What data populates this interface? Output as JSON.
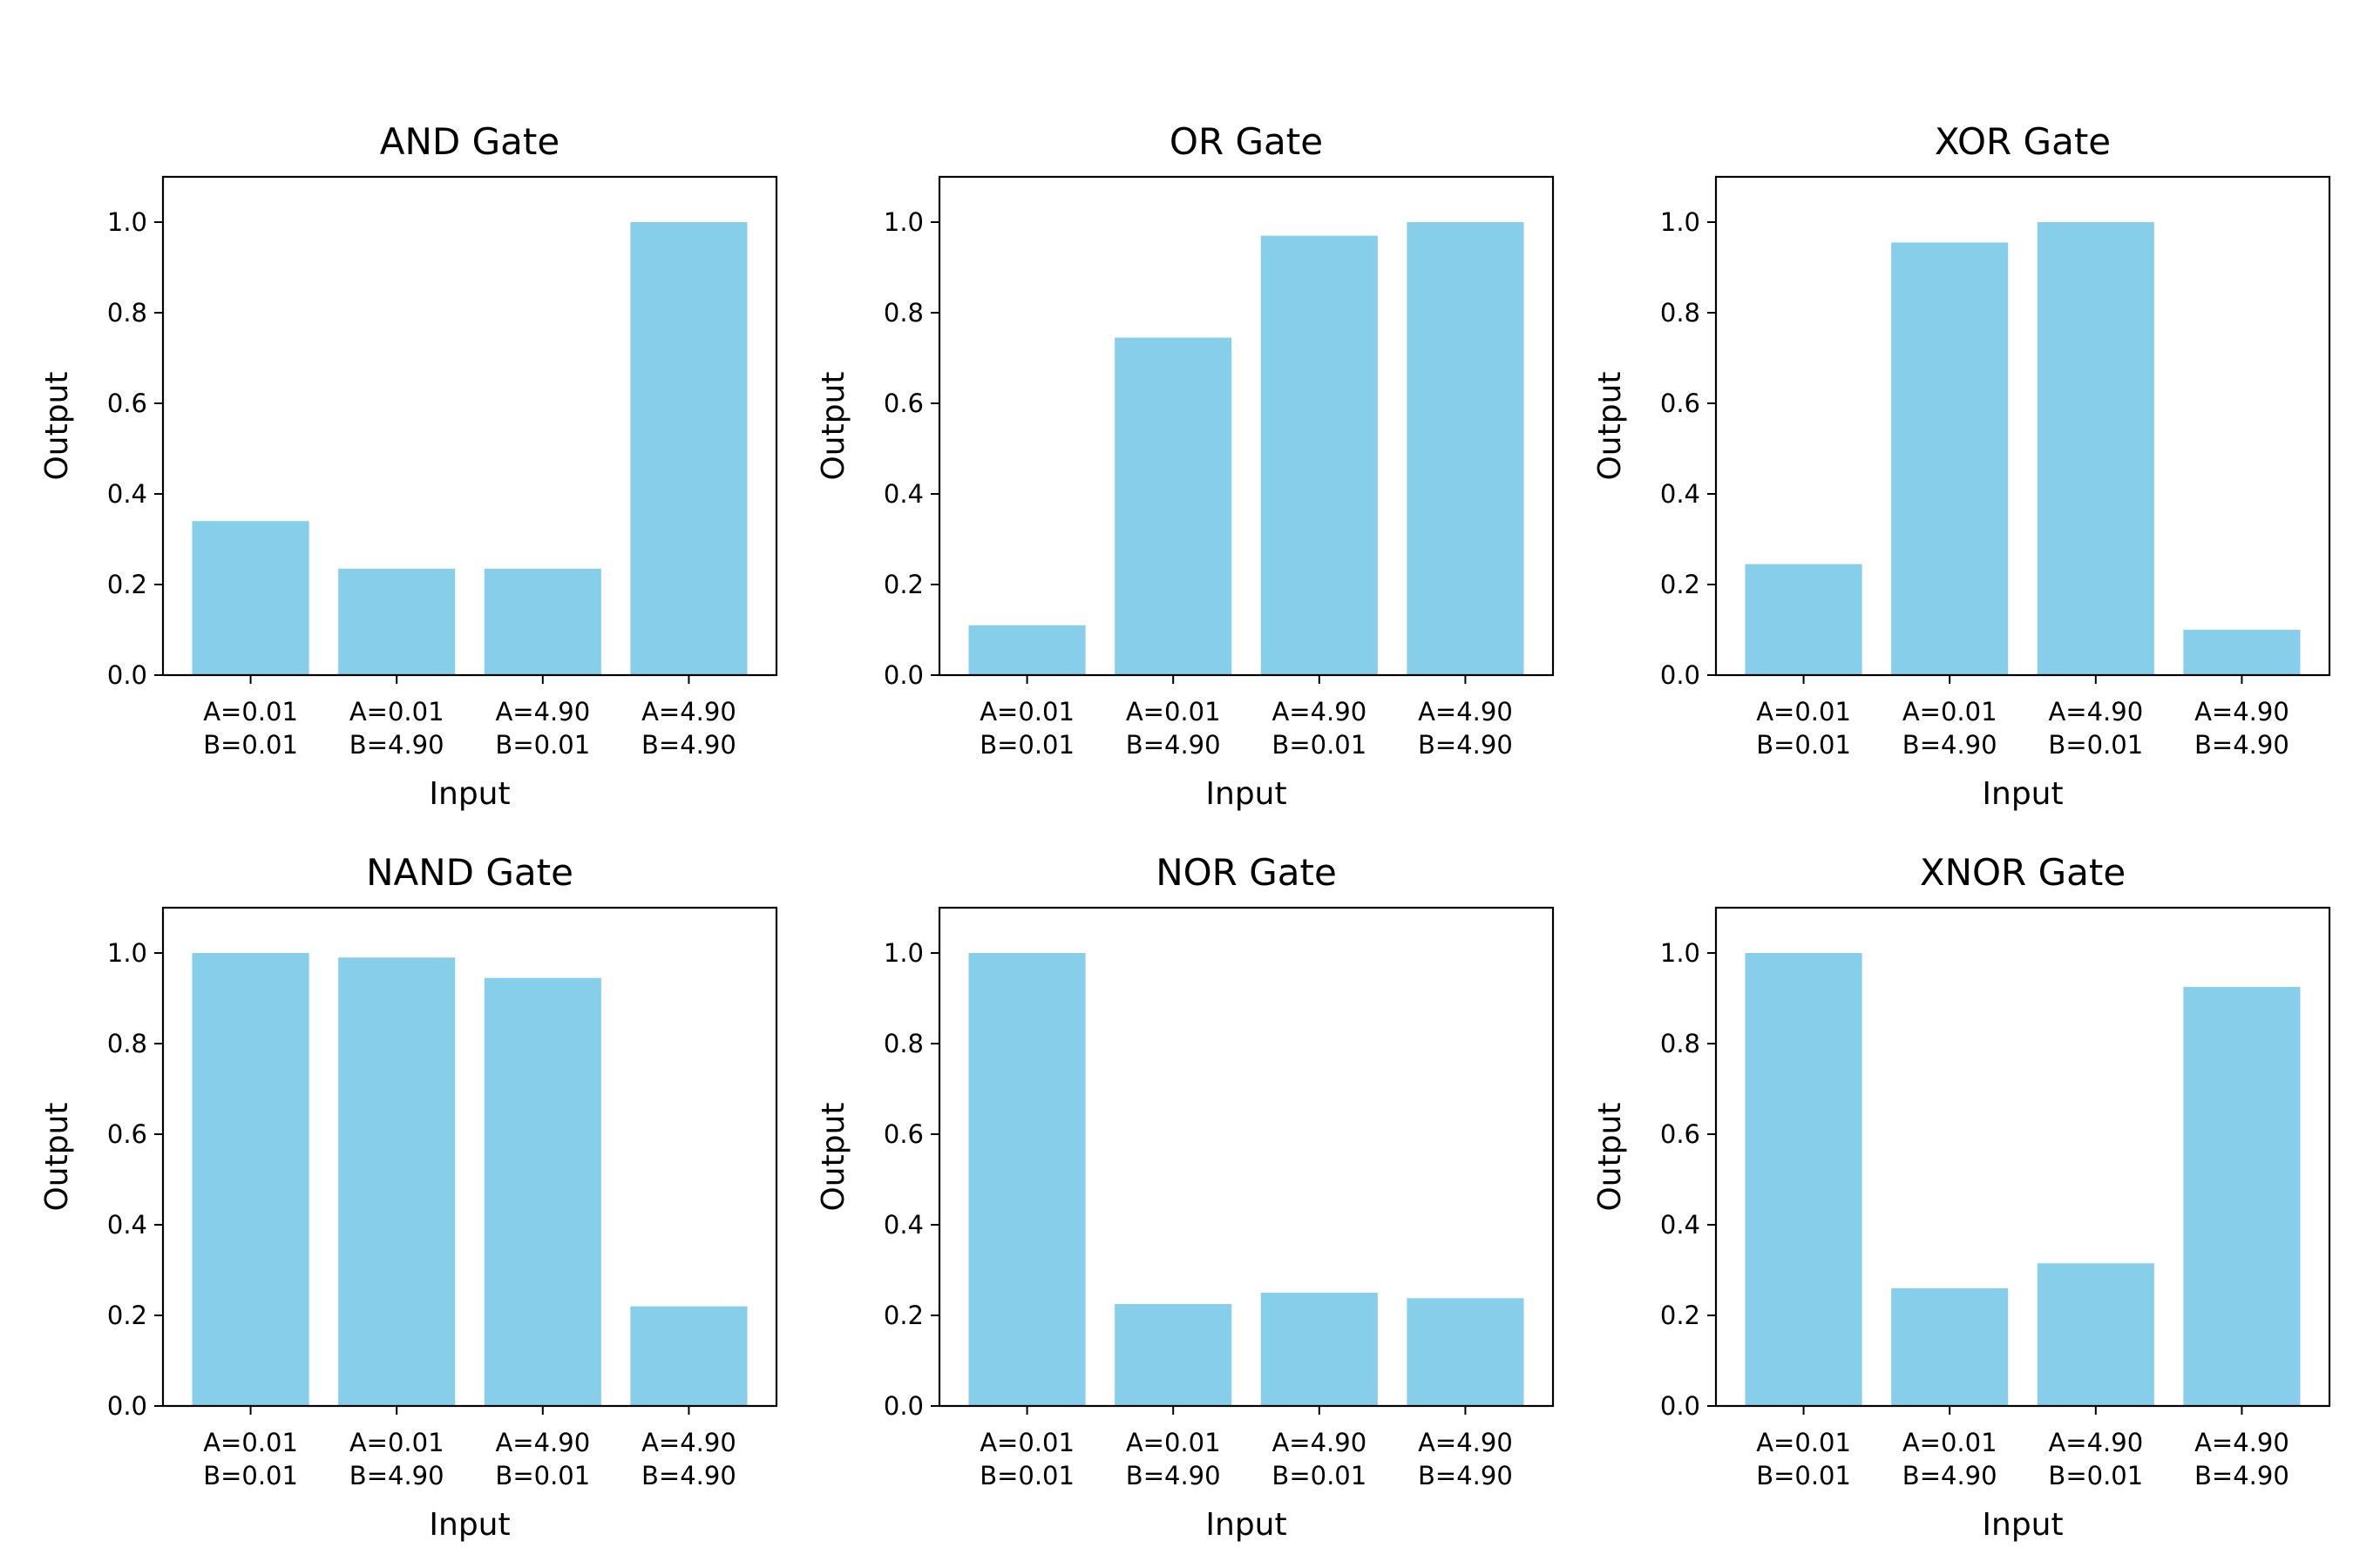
{
  "figure": {
    "bar_color": "#87ceeb",
    "axis_color": "#000000",
    "background": "#ffffff"
  },
  "chart_data": [
    {
      "type": "bar",
      "title": "AND Gate",
      "xlabel": "Input",
      "ylabel": "Output",
      "ylim": [
        0,
        1.1
      ],
      "yticks": [
        "0.0",
        "0.2",
        "0.4",
        "0.6",
        "0.8",
        "1.0"
      ],
      "categories": [
        [
          "A=0.01",
          "B=0.01"
        ],
        [
          "A=0.01",
          "B=4.90"
        ],
        [
          "A=4.90",
          "B=0.01"
        ],
        [
          "A=4.90",
          "B=4.90"
        ]
      ],
      "values": [
        0.34,
        0.235,
        0.235,
        1.0
      ],
      "grid": false
    },
    {
      "type": "bar",
      "title": "OR Gate",
      "xlabel": "Input",
      "ylabel": "Output",
      "ylim": [
        0,
        1.1
      ],
      "yticks": [
        "0.0",
        "0.2",
        "0.4",
        "0.6",
        "0.8",
        "1.0"
      ],
      "categories": [
        [
          "A=0.01",
          "B=0.01"
        ],
        [
          "A=0.01",
          "B=4.90"
        ],
        [
          "A=4.90",
          "B=0.01"
        ],
        [
          "A=4.90",
          "B=4.90"
        ]
      ],
      "values": [
        0.11,
        0.745,
        0.97,
        1.0
      ],
      "grid": false
    },
    {
      "type": "bar",
      "title": "XOR Gate",
      "xlabel": "Input",
      "ylabel": "Output",
      "ylim": [
        0,
        1.1
      ],
      "yticks": [
        "0.0",
        "0.2",
        "0.4",
        "0.6",
        "0.8",
        "1.0"
      ],
      "categories": [
        [
          "A=0.01",
          "B=0.01"
        ],
        [
          "A=0.01",
          "B=4.90"
        ],
        [
          "A=4.90",
          "B=0.01"
        ],
        [
          "A=4.90",
          "B=4.90"
        ]
      ],
      "values": [
        0.245,
        0.955,
        1.0,
        0.1
      ],
      "grid": false
    },
    {
      "type": "bar",
      "title": "NAND Gate",
      "xlabel": "Input",
      "ylabel": "Output",
      "ylim": [
        0,
        1.1
      ],
      "yticks": [
        "0.0",
        "0.2",
        "0.4",
        "0.6",
        "0.8",
        "1.0"
      ],
      "categories": [
        [
          "A=0.01",
          "B=0.01"
        ],
        [
          "A=0.01",
          "B=4.90"
        ],
        [
          "A=4.90",
          "B=0.01"
        ],
        [
          "A=4.90",
          "B=4.90"
        ]
      ],
      "values": [
        1.0,
        0.99,
        0.945,
        0.22
      ],
      "grid": false
    },
    {
      "type": "bar",
      "title": "NOR Gate",
      "xlabel": "Input",
      "ylabel": "Output",
      "ylim": [
        0,
        1.1
      ],
      "yticks": [
        "0.0",
        "0.2",
        "0.4",
        "0.6",
        "0.8",
        "1.0"
      ],
      "categories": [
        [
          "A=0.01",
          "B=0.01"
        ],
        [
          "A=0.01",
          "B=4.90"
        ],
        [
          "A=4.90",
          "B=0.01"
        ],
        [
          "A=4.90",
          "B=4.90"
        ]
      ],
      "values": [
        1.0,
        0.225,
        0.25,
        0.238
      ],
      "grid": false
    },
    {
      "type": "bar",
      "title": "XNOR Gate",
      "xlabel": "Input",
      "ylabel": "Output",
      "ylim": [
        0,
        1.1
      ],
      "yticks": [
        "0.0",
        "0.2",
        "0.4",
        "0.6",
        "0.8",
        "1.0"
      ],
      "categories": [
        [
          "A=0.01",
          "B=0.01"
        ],
        [
          "A=0.01",
          "B=4.90"
        ],
        [
          "A=4.90",
          "B=0.01"
        ],
        [
          "A=4.90",
          "B=4.90"
        ]
      ],
      "values": [
        1.0,
        0.26,
        0.315,
        0.925
      ],
      "grid": false
    }
  ]
}
